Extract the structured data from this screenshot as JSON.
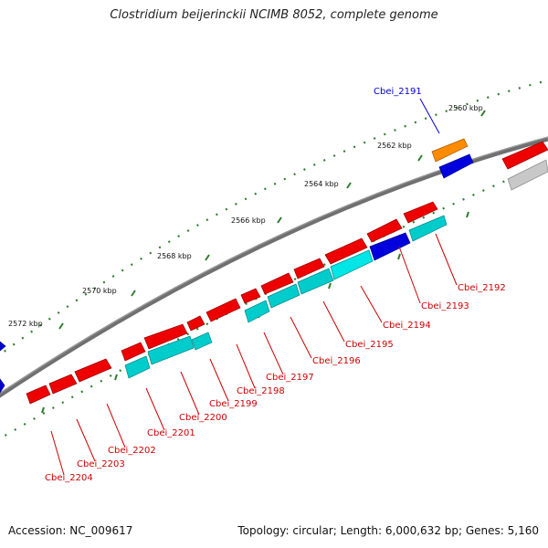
{
  "title": "Clostridium beijerinckii NCIMB 8052, complete genome",
  "footer": {
    "accession": "Accession: NC_009617",
    "topology": "Topology: circular; Length: 6,000,632 bp; Genes: 5,160"
  },
  "colors": {
    "backbone": "#707070",
    "tick": "#2f7d2f",
    "forward_cds": "#ee0000",
    "reverse_cds": "#00cccc",
    "highlight_forward": "#ff8c00",
    "highlight_reverse": "#0000dd",
    "gray_feature": "#c8c8c8",
    "label_red": "#cc0000",
    "label_blue": "#0000cc"
  },
  "axis_labels": [
    "2560 kbp",
    "2562 kbp",
    "2564 kbp",
    "2566 kbp",
    "2568 kbp",
    "2570 kbp",
    "2572 kbp"
  ],
  "gene_labels": [
    {
      "text": "Cbei_2191",
      "color": "label_blue"
    },
    {
      "text": "Cbei_2192",
      "color": "label_red"
    },
    {
      "text": "Cbei_2193",
      "color": "label_red"
    },
    {
      "text": "Cbei_2194",
      "color": "label_red"
    },
    {
      "text": "Cbei_2195",
      "color": "label_red"
    },
    {
      "text": "Cbei_2196",
      "color": "label_red"
    },
    {
      "text": "Cbei_2197",
      "color": "label_red"
    },
    {
      "text": "Cbei_2198",
      "color": "label_red"
    },
    {
      "text": "Cbei_2199",
      "color": "label_red"
    },
    {
      "text": "Cbei_2200",
      "color": "label_red"
    },
    {
      "text": "Cbei_2201",
      "color": "label_red"
    },
    {
      "text": "Cbei_2202",
      "color": "label_red"
    },
    {
      "text": "Cbei_2203",
      "color": "label_red"
    },
    {
      "text": "Cbei_2204",
      "color": "label_red"
    }
  ]
}
